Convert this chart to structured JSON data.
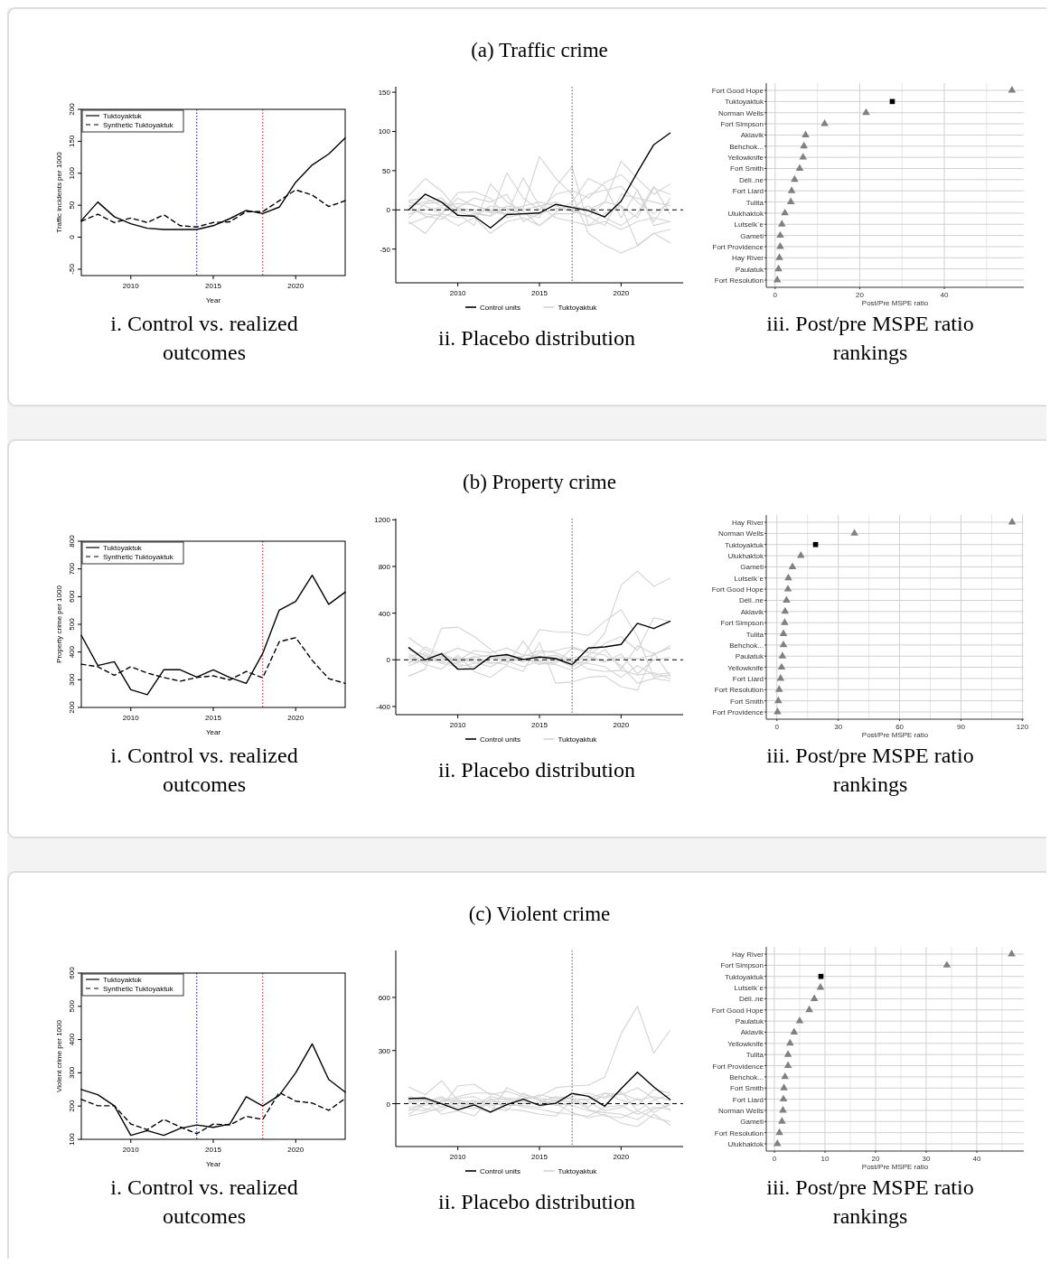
{
  "chart_data": [
    {
      "type": "line",
      "title": "i. Control vs. realized outcomes",
      "xlabel": "Year",
      "ylabel": "Traffic incidents per 1000",
      "x": [
        2007,
        2008,
        2009,
        2010,
        2011,
        2012,
        2013,
        2014,
        2015,
        2016,
        2017,
        2018,
        2019,
        2020,
        2021,
        2022,
        2023
      ],
      "xlim": [
        2007,
        2023
      ],
      "xticks": [
        2010,
        2015,
        2020
      ],
      "ylim": [
        -60,
        200
      ],
      "yticks": [
        -50,
        0,
        50,
        100,
        150,
        200
      ],
      "legend": "top left",
      "series": [
        {
          "name": "Tuktoyaktuk",
          "color": "#000000",
          "line_style": "solid",
          "values": [
            26,
            55,
            32,
            21,
            14,
            12,
            12,
            12,
            18,
            29,
            42,
            37,
            47,
            86,
            113,
            130,
            155
          ]
        },
        {
          "name": "Synthetic Tuktoyaktuk",
          "color": "#000000",
          "line_style": "dashed",
          "values": [
            25,
            36,
            23,
            30,
            23,
            35,
            18,
            16,
            23,
            24,
            40,
            40,
            57,
            74,
            66,
            48,
            57
          ]
        }
      ],
      "ref_lines": [
        {
          "axis": "x",
          "value": 2014,
          "color": "#0000ff",
          "line_style": "dotted"
        },
        {
          "axis": "x",
          "value": 2018,
          "color": "#ff0000",
          "line_style": "dotted"
        }
      ]
    },
    {
      "type": "line",
      "subtitle": "(a) Traffic crime",
      "title": "ii. Placebo distribution",
      "x": [
        2007,
        2008,
        2009,
        2010,
        2011,
        2012,
        2013,
        2014,
        2015,
        2016,
        2017,
        2018,
        2019,
        2020,
        2021,
        2022,
        2023
      ],
      "xlim": [
        2006.2,
        2023.8
      ],
      "xticks": [
        2010,
        2015,
        2020
      ],
      "ylim": [
        -93,
        157
      ],
      "yticks": [
        -50,
        0,
        50,
        100,
        150
      ],
      "legend": "bottom",
      "series": [
        {
          "name": "Control units",
          "color": "#000000",
          "values": [
            0,
            20,
            10,
            -7,
            -8,
            -23,
            -6,
            -5,
            -4,
            7,
            3,
            -1,
            -9,
            11,
            48,
            83,
            98
          ]
        },
        {
          "name": "Tuktoyaktuk",
          "color": "#d3d3d3",
          "values": [
            18,
            40,
            24,
            0,
            -3,
            -8,
            5,
            2,
            68,
            40,
            20,
            -30,
            -45,
            -55,
            -46,
            -30,
            -42
          ]
        },
        {
          "color": "#d3d3d3",
          "values": [
            -15,
            -30,
            -5,
            22,
            23,
            15,
            -10,
            -5,
            -10,
            30,
            55,
            -20,
            -5,
            5,
            -45,
            -30,
            -25
          ]
        },
        {
          "color": "#d3d3d3",
          "values": [
            5,
            10,
            15,
            -5,
            -20,
            33,
            10,
            -2,
            -20,
            -3,
            10,
            40,
            30,
            -10,
            25,
            -15,
            15
          ]
        },
        {
          "color": "#d3d3d3",
          "values": [
            -18,
            -10,
            -5,
            -10,
            -5,
            -8,
            47,
            15,
            0,
            20,
            25,
            15,
            35,
            45,
            25,
            -20,
            -15
          ]
        },
        {
          "color": "#d3d3d3",
          "values": [
            10,
            5,
            -5,
            15,
            5,
            0,
            -5,
            41,
            5,
            10,
            0,
            -8,
            10,
            62,
            40,
            20,
            33
          ]
        },
        {
          "color": "#d3d3d3",
          "values": [
            0,
            -5,
            -8,
            -20,
            -10,
            -30,
            -15,
            -10,
            -20,
            -5,
            -5,
            5,
            -10,
            -20,
            -5,
            30,
            -5
          ]
        },
        {
          "color": "#d3d3d3",
          "values": [
            12,
            15,
            5,
            8,
            6,
            -2,
            0,
            5,
            10,
            5,
            -2,
            -8,
            -20,
            20,
            15,
            10,
            5
          ]
        },
        {
          "color": "#d3d3d3",
          "values": [
            -5,
            0,
            3,
            -2,
            -8,
            5,
            2,
            -5,
            -3,
            0,
            5,
            0,
            10,
            5,
            -10,
            28,
            20
          ]
        },
        {
          "color": "#d3d3d3",
          "values": [
            5,
            -8,
            -12,
            2,
            0,
            -3,
            -5,
            0,
            5,
            -10,
            -15,
            -20,
            -15,
            -25,
            -15,
            -10,
            -15
          ]
        },
        {
          "color": "#d3d3d3",
          "values": [
            -10,
            8,
            10,
            3,
            15,
            10,
            20,
            -15,
            -5,
            2,
            0,
            20,
            25,
            30,
            10,
            -5,
            10
          ]
        }
      ],
      "ref_lines": [
        {
          "axis": "x",
          "value": 2017,
          "color": "#555555",
          "line_style": "dotted"
        },
        {
          "axis": "y",
          "value": 0,
          "color": "#000000",
          "line_style": "dashed"
        }
      ]
    },
    {
      "type": "scatter",
      "orientation": "horizontal",
      "title": "iii. Post/pre MSPE ratio rankings",
      "xlabel": "Post/Pre MSPE ratio",
      "grid": true,
      "categories": [
        "Fort Good Hope",
        "Tuktoyaktuk",
        "Norman Wells",
        "Fort Simpson",
        "Aklavik",
        "Behchok...",
        "Yellowknife",
        "Fort Smith",
        "Déli..ne",
        "Fort Liard",
        "Tulita",
        "Ulukhaktok",
        "Lutselk`e",
        "Gameti",
        "Fort Providence",
        "Hay River",
        "Paulatuk",
        "Fort Resolution"
      ],
      "xlim": [
        -2.1,
        58.8
      ],
      "xticks": [
        0,
        {
          "value": 10,
          "label": null
        },
        20,
        {
          "value": 30,
          "label": null
        },
        40,
        {
          "value": 50,
          "label": null
        }
      ],
      "series": [
        {
          "color": "#808080",
          "marker": "triangle",
          "values": [
            56,
            null,
            21.5,
            11.7,
            7.2,
            6.8,
            6.6,
            5.8,
            4.6,
            3.9,
            3.7,
            2.3,
            1.6,
            1.2,
            1.2,
            1.0,
            0.8,
            0.5
          ]
        },
        {
          "color": "#000000",
          "marker": "square",
          "values": [
            null,
            27.7,
            null,
            null,
            null,
            null,
            null,
            null,
            null,
            null,
            null,
            null,
            null,
            null,
            null,
            null,
            null,
            null
          ]
        }
      ]
    },
    {
      "type": "line",
      "title": "i. Control vs. realized outcomes",
      "xlabel": "Year",
      "ylabel": "Property crime per 1000",
      "x": [
        2007,
        2008,
        2009,
        2010,
        2011,
        2012,
        2013,
        2014,
        2015,
        2016,
        2017,
        2018,
        2019,
        2020,
        2021,
        2022,
        2023
      ],
      "xlim": [
        2007,
        2023
      ],
      "xticks": [
        2010,
        2015,
        2020
      ],
      "ylim": [
        200,
        800
      ],
      "yticks": [
        200,
        300,
        400,
        500,
        600,
        700,
        800
      ],
      "legend": "top left",
      "series": [
        {
          "name": "Tuktoyaktuk",
          "color": "#000000",
          "line_style": "solid",
          "values": [
            460,
            351,
            365,
            264,
            246,
            336,
            336,
            310,
            336,
            308,
            287,
            395,
            551,
            583,
            677,
            572,
            616
          ]
        },
        {
          "name": "Synthetic Tuktoyaktuk",
          "color": "#000000",
          "line_style": "dashed",
          "values": [
            356,
            347,
            316,
            347,
            324,
            308,
            295,
            308,
            314,
            299,
            330,
            307,
            437,
            452,
            370,
            304,
            287
          ]
        }
      ],
      "ref_lines": [
        {
          "axis": "x",
          "value": 2018,
          "color": "#ff0000",
          "line_style": "dotted"
        }
      ]
    },
    {
      "type": "line",
      "subtitle": "(b) Property crime",
      "title": "ii. Placebo distribution",
      "x": [
        2007,
        2008,
        2009,
        2010,
        2011,
        2012,
        2013,
        2014,
        2015,
        2016,
        2017,
        2018,
        2019,
        2020,
        2021,
        2022,
        2023
      ],
      "xlim": [
        2006.2,
        2023.8
      ],
      "xticks": [
        2010,
        2015,
        2020
      ],
      "ylim": [
        -470,
        1210
      ],
      "yticks": [
        -400,
        0,
        400,
        800,
        1200
      ],
      "legend": "bottom",
      "series": [
        {
          "name": "Control units",
          "color": "#000000",
          "values": [
            104,
            0,
            52,
            -80,
            -77,
            28,
            45,
            3,
            24,
            10,
            -42,
            101,
            111,
            132,
            313,
            268,
            330
          ]
        },
        {
          "name": "Tuktoyaktuk",
          "color": "#d3d3d3",
          "values": [
            190,
            90,
            20,
            -40,
            -60,
            20,
            40,
            10,
            -20,
            -30,
            100,
            60,
            230,
            640,
            760,
            630,
            700
          ]
        },
        {
          "color": "#d3d3d3",
          "values": [
            -140,
            -80,
            270,
            280,
            200,
            90,
            -10,
            30,
            260,
            240,
            235,
            210,
            330,
            430,
            200,
            -150,
            -130
          ]
        },
        {
          "color": "#d3d3d3",
          "values": [
            50,
            -40,
            -80,
            40,
            -100,
            -150,
            -50,
            -100,
            150,
            -200,
            -190,
            -150,
            -140,
            -230,
            -260,
            60,
            -140
          ]
        },
        {
          "color": "#d3d3d3",
          "values": [
            -30,
            110,
            40,
            100,
            50,
            20,
            30,
            -20,
            60,
            80,
            110,
            70,
            40,
            -50,
            -200,
            -160,
            -180
          ]
        },
        {
          "color": "#d3d3d3",
          "values": [
            20,
            -20,
            10,
            -10,
            80,
            60,
            100,
            40,
            30,
            20,
            -30,
            40,
            140,
            200,
            80,
            360,
            330
          ]
        },
        {
          "color": "#d3d3d3",
          "values": [
            -50,
            0,
            60,
            -20,
            30,
            -20,
            -40,
            160,
            -30,
            -40,
            -90,
            -10,
            90,
            -80,
            120,
            50,
            100
          ]
        },
        {
          "color": "#d3d3d3",
          "values": [
            0,
            30,
            -30,
            -60,
            -30,
            10,
            20,
            0,
            20,
            40,
            -20,
            -30,
            -60,
            -150,
            -50,
            -130,
            -110
          ]
        },
        {
          "color": "#d3d3d3",
          "values": [
            80,
            40,
            -10,
            20,
            0,
            -30,
            -10,
            -60,
            -10,
            10,
            -60,
            20,
            -20,
            50,
            -120,
            0,
            20
          ]
        },
        {
          "color": "#d3d3d3",
          "values": [
            -20,
            -10,
            30,
            10,
            -20,
            -60,
            10,
            30,
            80,
            60,
            0,
            -80,
            -100,
            -90,
            -130,
            -110,
            -160
          ]
        },
        {
          "color": "#d3d3d3",
          "values": [
            30,
            60,
            -20,
            -30,
            20,
            40,
            -20,
            10,
            -40,
            -10,
            20,
            30,
            -10,
            20,
            10,
            40,
            120
          ]
        }
      ],
      "ref_lines": [
        {
          "axis": "x",
          "value": 2017,
          "color": "#555555",
          "line_style": "dotted"
        },
        {
          "axis": "y",
          "value": 0,
          "color": "#000000",
          "line_style": "dashed"
        }
      ]
    },
    {
      "type": "scatter",
      "orientation": "horizontal",
      "title": "iii. Post/pre MSPE ratio rankings",
      "xlabel": "Post/Pre MSPE ratio",
      "grid": true,
      "categories": [
        "Hay River",
        "Norman Wells",
        "Tuktoyaktuk",
        "Ulukhaktok",
        "Gameti",
        "Lutselk`e",
        "Fort Good Hope",
        "Déli..ne",
        "Aklavik",
        "Fort Simpson",
        "Tulita",
        "Behchok...",
        "Paulatuk",
        "Yellowknife",
        "Fort Liard",
        "Fort Resolution",
        "Fort Smith",
        "Fort Providence"
      ],
      "xlim": [
        -5.2,
        120.7
      ],
      "xticks": [
        0,
        {
          "value": 15,
          "label": null
        },
        30,
        {
          "value": 45,
          "label": null
        },
        60,
        {
          "value": 75,
          "label": null
        },
        90,
        {
          "value": 105,
          "label": null
        },
        120
      ],
      "series": [
        {
          "color": "#808080",
          "marker": "triangle",
          "values": [
            115,
            37.9,
            null,
            11.7,
            7.6,
            5.6,
            5.4,
            4.7,
            4.0,
            3.8,
            3.2,
            3.2,
            2.7,
            2.3,
            1.8,
            1.1,
            0.7,
            0.3
          ]
        },
        {
          "color": "#000000",
          "marker": "square",
          "values": [
            null,
            null,
            18.9,
            null,
            null,
            null,
            null,
            null,
            null,
            null,
            null,
            null,
            null,
            null,
            null,
            null,
            null,
            null
          ]
        }
      ]
    },
    {
      "type": "line",
      "title": "i. Control vs. realized outcomes",
      "xlabel": "Year",
      "ylabel": "Violent crime per 1000",
      "x": [
        2007,
        2008,
        2009,
        2010,
        2011,
        2012,
        2013,
        2014,
        2015,
        2016,
        2017,
        2018,
        2019,
        2020,
        2021,
        2022,
        2023
      ],
      "xlim": [
        2007,
        2023
      ],
      "xticks": [
        2010,
        2015,
        2020
      ],
      "ylim": [
        100,
        600
      ],
      "yticks": [
        100,
        200,
        300,
        400,
        500,
        600
      ],
      "legend": "top left",
      "series": [
        {
          "name": "Tuktoyaktuk",
          "color": "#000000",
          "line_style": "solid",
          "values": [
            250,
            234,
            201,
            112,
            126,
            112,
            133,
            143,
            136,
            146,
            228,
            200,
            232,
            300,
            387,
            280,
            242
          ]
        },
        {
          "name": "Synthetic Tuktoyaktuk",
          "color": "#000000",
          "line_style": "dashed",
          "values": [
            220,
            201,
            201,
            146,
            129,
            160,
            137,
            117,
            146,
            143,
            169,
            160,
            241,
            215,
            209,
            187,
            223
          ]
        }
      ],
      "ref_lines": [
        {
          "axis": "x",
          "value": 2014,
          "color": "#0000ff",
          "line_style": "dotted"
        },
        {
          "axis": "x",
          "value": 2018,
          "color": "#ff0000",
          "line_style": "dotted"
        }
      ]
    },
    {
      "type": "line",
      "subtitle": "(c) Violent crime",
      "title": "ii. Placebo distribution",
      "x": [
        2007,
        2008,
        2009,
        2010,
        2011,
        2012,
        2013,
        2014,
        2015,
        2016,
        2017,
        2018,
        2019,
        2020,
        2021,
        2022,
        2023
      ],
      "xlim": [
        2006.2,
        2023.8
      ],
      "xticks": [
        2010,
        2015,
        2020
      ],
      "ylim": [
        -242,
        865
      ],
      "yticks": [
        0,
        300,
        600
      ],
      "legend": "bottom",
      "series": [
        {
          "name": "Control units",
          "color": "#000000",
          "values": [
            28,
            32,
            0,
            -35,
            -7,
            -48,
            -5,
            25,
            -9,
            2,
            58,
            42,
            -14,
            85,
            178,
            95,
            23
          ]
        },
        {
          "name": "Tuktoyaktuk",
          "color": "#d3d3d3",
          "values": [
            -60,
            0,
            30,
            20,
            0,
            20,
            30,
            30,
            40,
            90,
            100,
            105,
            150,
            395,
            550,
            285,
            415
          ]
        },
        {
          "color": "#d3d3d3",
          "values": [
            95,
            50,
            130,
            20,
            -20,
            -50,
            90,
            50,
            30,
            20,
            10,
            30,
            60,
            50,
            90,
            30,
            -40
          ]
        },
        {
          "color": "#d3d3d3",
          "values": [
            -70,
            -50,
            -20,
            100,
            110,
            50,
            70,
            40,
            20,
            0,
            -50,
            -80,
            -60,
            -110,
            -130,
            -60,
            -120
          ]
        },
        {
          "color": "#d3d3d3",
          "values": [
            40,
            20,
            -60,
            -40,
            -70,
            30,
            -30,
            -40,
            -60,
            -70,
            20,
            -30,
            -70,
            -80,
            -40,
            -80,
            -100
          ]
        },
        {
          "color": "#d3d3d3",
          "values": [
            -20,
            -10,
            10,
            40,
            60,
            60,
            30,
            10,
            0,
            20,
            30,
            -20,
            60,
            20,
            -10,
            80,
            60
          ]
        },
        {
          "color": "#d3d3d3",
          "values": [
            10,
            30,
            -20,
            0,
            20,
            -20,
            -40,
            60,
            20,
            -10,
            0,
            10,
            -40,
            -20,
            30,
            -50,
            0
          ]
        },
        {
          "color": "#d3d3d3",
          "values": [
            -40,
            10,
            40,
            -10,
            -30,
            10,
            10,
            -20,
            -30,
            -50,
            -60,
            -70,
            -20,
            -10,
            -60,
            -20,
            -30
          ]
        },
        {
          "color": "#d3d3d3",
          "values": [
            20,
            -30,
            -40,
            30,
            40,
            -10,
            0,
            20,
            50,
            30,
            40,
            60,
            30,
            70,
            -40,
            20,
            50
          ]
        },
        {
          "color": "#d3d3d3",
          "values": [
            0,
            20,
            0,
            -20,
            10,
            0,
            -10,
            -10,
            -20,
            10,
            -10,
            -40,
            -50,
            -60,
            -90,
            -30,
            -10
          ]
        },
        {
          "color": "#d3d3d3",
          "values": [
            -30,
            -40,
            20,
            10,
            -10,
            40,
            20,
            0,
            10,
            40,
            30,
            20,
            40,
            60,
            20,
            40,
            20
          ]
        }
      ],
      "ref_lines": [
        {
          "axis": "x",
          "value": 2017,
          "color": "#555555",
          "line_style": "dotted"
        },
        {
          "axis": "y",
          "value": 0,
          "color": "#000000",
          "line_style": "dashed"
        }
      ]
    },
    {
      "type": "scatter",
      "orientation": "horizontal",
      "title": "iii. Post/pre MSPE ratio rankings",
      "xlabel": "Post/Pre MSPE ratio",
      "grid": true,
      "categories": [
        "Hay River",
        "Fort Simpson",
        "Tuktoyaktuk",
        "Lutselk`e",
        "Déli..ne",
        "Fort Good Hope",
        "Paulatuk",
        "Aklavik",
        "Yellowknife",
        "Tulita",
        "Fort Providence",
        "Behchok...",
        "Fort Smith",
        "Fort Liard",
        "Norman Wells",
        "Gameti",
        "Fort Resolution",
        "Ulukhaktok"
      ],
      "xlim": [
        -1.6,
        49.3
      ],
      "xticks": [
        0,
        {
          "value": 5,
          "label": null
        },
        10,
        {
          "value": 15,
          "label": null
        },
        20,
        {
          "value": 25,
          "label": null
        },
        30,
        {
          "value": 35,
          "label": null
        },
        40,
        {
          "value": 45,
          "label": null
        }
      ],
      "series": [
        {
          "color": "#808080",
          "marker": "triangle",
          "values": [
            46.9,
            34.1,
            null,
            9.1,
            7.9,
            6.9,
            5.0,
            3.9,
            3.1,
            2.7,
            2.7,
            2.1,
            1.9,
            1.8,
            1.7,
            1.5,
            1.0,
            0.6
          ]
        },
        {
          "color": "#000000",
          "marker": "square",
          "values": [
            null,
            null,
            9.2,
            null,
            null,
            null,
            null,
            null,
            null,
            null,
            null,
            null,
            null,
            null,
            null,
            null,
            null,
            null
          ]
        }
      ]
    }
  ]
}
